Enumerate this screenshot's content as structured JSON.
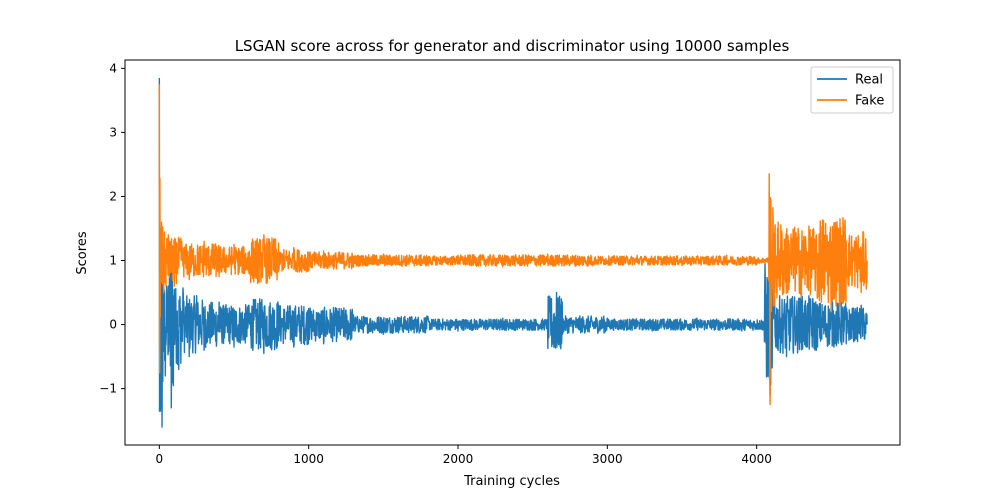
{
  "chart_data": {
    "type": "line",
    "title": "LSGAN score across for generator and discriminator using 10000 samples",
    "xlabel": "Training cycles",
    "ylabel": "Scores",
    "xlim": [
      -230,
      4960
    ],
    "ylim": [
      -1.88,
      4.13
    ],
    "xticks": [
      0,
      1000,
      2000,
      3000,
      4000
    ],
    "yticks": [
      -1,
      0,
      1,
      2,
      3,
      4
    ],
    "ytick_labels": [
      "−1",
      "0",
      "1",
      "2",
      "3",
      "4"
    ],
    "grid": false,
    "legend": {
      "position": "top-right",
      "entries": [
        "Real",
        "Fake"
      ]
    },
    "series": [
      {
        "name": "Real",
        "color": "#1f77b4",
        "points": [
          [
            0,
            3.85
          ],
          [
            2,
            -0.75
          ],
          [
            8,
            -1.35
          ],
          [
            12,
            0.05
          ],
          [
            18,
            -1.6
          ],
          [
            25,
            0.3
          ],
          [
            40,
            -0.8
          ],
          [
            60,
            0.6
          ],
          [
            80,
            -1.3
          ],
          [
            100,
            0.55
          ],
          [
            130,
            -0.7
          ],
          [
            160,
            0.5
          ],
          [
            200,
            -0.5
          ],
          [
            250,
            0.45
          ],
          [
            300,
            -0.4
          ],
          [
            400,
            0.35
          ],
          [
            500,
            -0.35
          ],
          [
            600,
            0.3
          ],
          [
            700,
            -0.45
          ],
          [
            800,
            0.3
          ],
          [
            900,
            -0.35
          ],
          [
            1000,
            0.25
          ],
          [
            1100,
            -0.3
          ],
          [
            1300,
            0.15
          ],
          [
            1500,
            -0.15
          ],
          [
            1800,
            0.1
          ],
          [
            2000,
            -0.1
          ],
          [
            2300,
            0.1
          ],
          [
            2600,
            -0.1
          ],
          [
            2660,
            0.5
          ],
          [
            2700,
            -0.15
          ],
          [
            3000,
            0.1
          ],
          [
            3300,
            -0.1
          ],
          [
            3600,
            0.1
          ],
          [
            3900,
            -0.1
          ],
          [
            4050,
            0.05
          ],
          [
            4090,
            -1.1
          ],
          [
            4120,
            0.45
          ],
          [
            4200,
            -0.5
          ],
          [
            4300,
            0.5
          ],
          [
            4400,
            -0.4
          ],
          [
            4500,
            0.4
          ],
          [
            4600,
            -0.3
          ],
          [
            4700,
            0.3
          ],
          [
            4740,
            0.0
          ]
        ]
      },
      {
        "name": "Fake",
        "color": "#ff7f0e",
        "points": [
          [
            0,
            3.75
          ],
          [
            2,
            -0.75
          ],
          [
            8,
            1.0
          ],
          [
            15,
            1.6
          ],
          [
            30,
            0.5
          ],
          [
            60,
            1.4
          ],
          [
            100,
            0.6
          ],
          [
            150,
            1.3
          ],
          [
            200,
            0.7
          ],
          [
            300,
            1.3
          ],
          [
            400,
            0.75
          ],
          [
            500,
            1.25
          ],
          [
            600,
            0.8
          ],
          [
            700,
            1.4
          ],
          [
            800,
            0.85
          ],
          [
            900,
            1.2
          ],
          [
            1000,
            0.85
          ],
          [
            1100,
            1.15
          ],
          [
            1300,
            0.9
          ],
          [
            1500,
            1.1
          ],
          [
            1800,
            0.92
          ],
          [
            2000,
            1.08
          ],
          [
            2300,
            0.9
          ],
          [
            2600,
            1.1
          ],
          [
            2900,
            0.92
          ],
          [
            3200,
            1.08
          ],
          [
            3500,
            0.92
          ],
          [
            3800,
            1.08
          ],
          [
            4000,
            0.95
          ],
          [
            4080,
            1.0
          ],
          [
            4090,
            -1.25
          ],
          [
            4095,
            1.95
          ],
          [
            4120,
            0.3
          ],
          [
            4200,
            1.3
          ],
          [
            4300,
            0.4
          ],
          [
            4400,
            1.4
          ],
          [
            4500,
            0.2
          ],
          [
            4600,
            1.3
          ],
          [
            4700,
            0.5
          ],
          [
            4740,
            1.0
          ]
        ]
      }
    ]
  }
}
